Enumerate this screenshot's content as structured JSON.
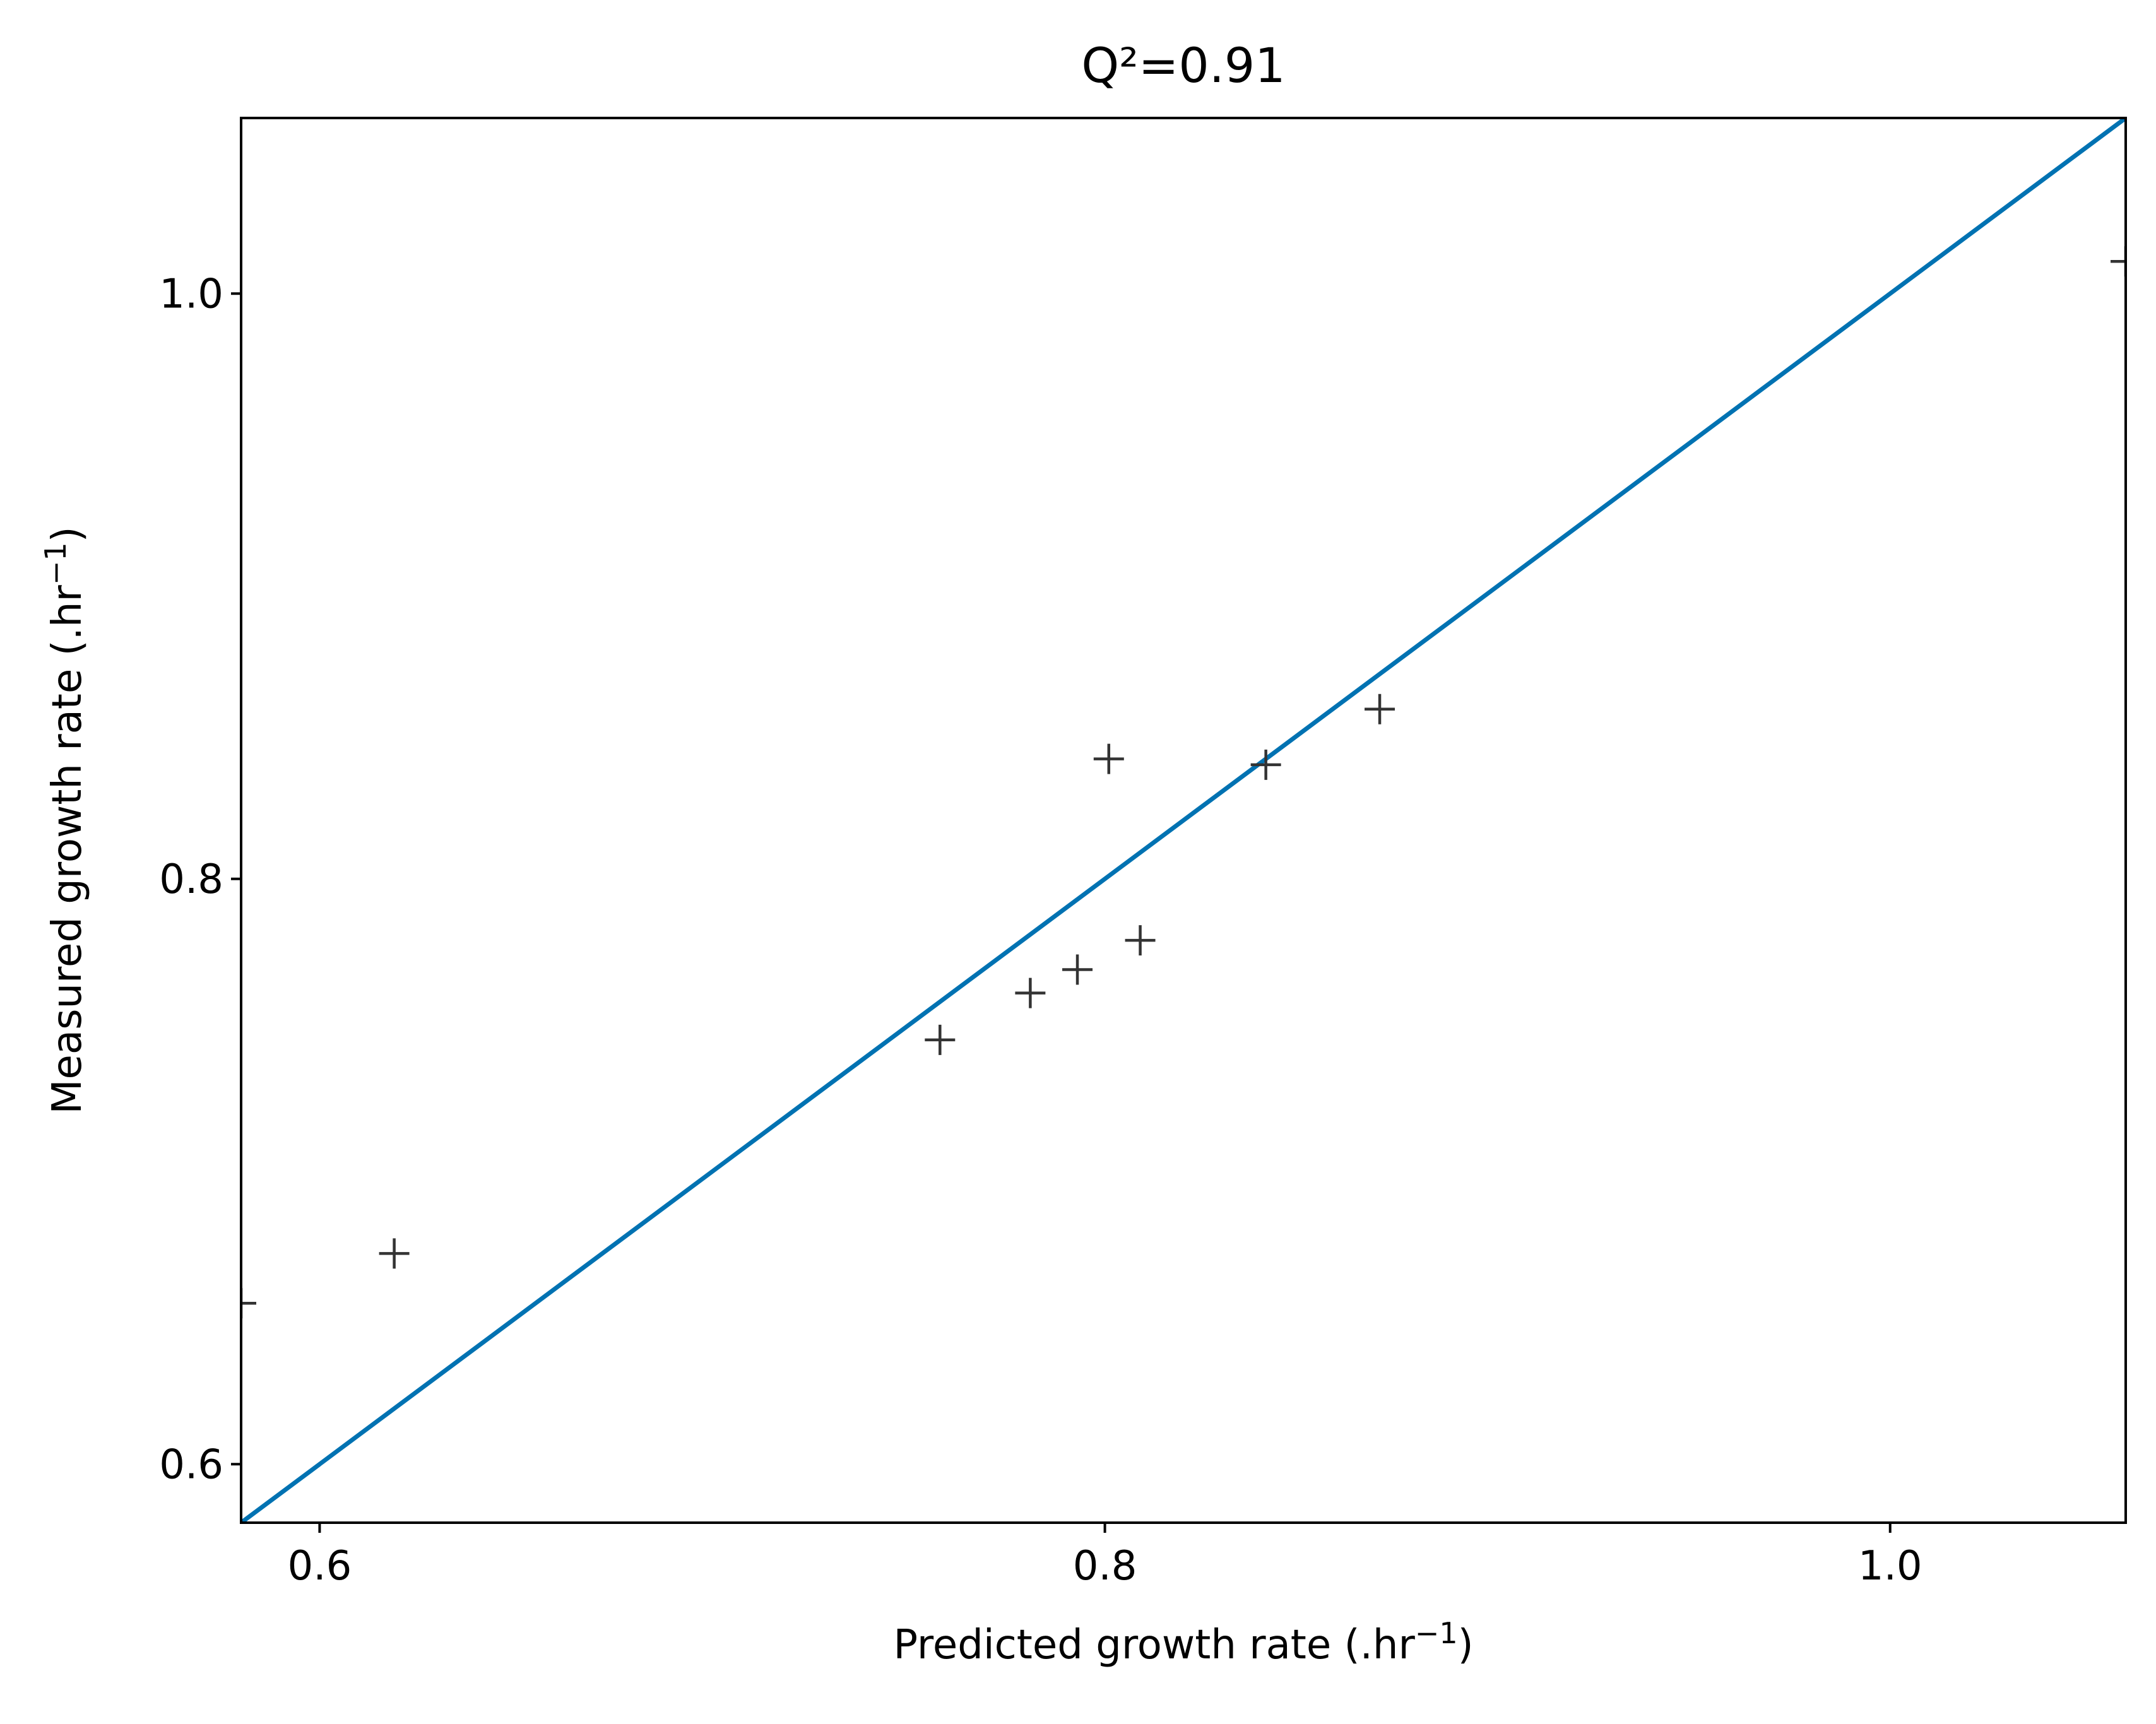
{
  "chart_data": {
    "type": "scatter",
    "title": "Q²=0.91",
    "xlabel": {
      "main": "Predicted growth rate (.hr",
      "sup": "−1",
      "close": ")"
    },
    "ylabel": {
      "main": "Measured growth rate (.hr",
      "sup": "−1",
      "close": ")"
    },
    "xlim": [
      0.58,
      1.06
    ],
    "ylim": [
      0.58,
      1.06
    ],
    "x_ticks": [
      0.6,
      0.8,
      1.0
    ],
    "y_ticks": [
      0.6,
      0.8,
      1.0
    ],
    "x_tick_labels": [
      "0.6",
      "0.8",
      "1.0"
    ],
    "y_tick_labels": [
      "0.6",
      "0.8",
      "1.0"
    ],
    "grid": false,
    "marker": "+",
    "series": [
      {
        "x": [
          0.619,
          0.758,
          0.781,
          0.793,
          0.801,
          0.809,
          0.841,
          0.87,
          1.06,
          0.58
        ],
        "y": [
          0.672,
          0.745,
          0.761,
          0.769,
          0.841,
          0.779,
          0.839,
          0.858,
          1.011,
          0.655
        ]
      }
    ],
    "reference_line": {
      "x": [
        0.58,
        1.06
      ],
      "y": [
        0.58,
        1.06
      ]
    },
    "colors": {
      "line": "#0072b2",
      "marker": "#333333",
      "axes": "#000000"
    }
  }
}
